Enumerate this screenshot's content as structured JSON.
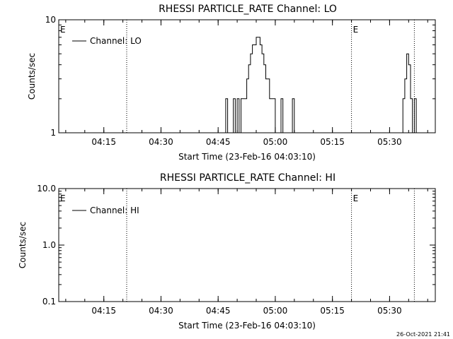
{
  "chart_data": [
    {
      "type": "line",
      "title": "RHESSI PARTICLE_RATE Channel: LO",
      "xlabel": "Start Time (23-Feb-16 04:03:10)",
      "ylabel": "Counts/sec",
      "y_scale": "log",
      "ylim": [
        1,
        10
      ],
      "xlim": [
        "04:03:10",
        "05:42:00"
      ],
      "x_ticks": [
        "04:15",
        "04:30",
        "04:45",
        "05:00",
        "05:15",
        "05:30"
      ],
      "y_ticks": [
        "1",
        "10"
      ],
      "legend": {
        "placement": "top-left",
        "entries": [
          "Channel: LO"
        ]
      },
      "event_markers": [
        {
          "label": "E",
          "time": "04:03:10",
          "line": false
        },
        {
          "label": "",
          "time": "04:21:00",
          "line": true
        },
        {
          "label": "E",
          "time": "05:20:00",
          "line": true
        },
        {
          "label": "",
          "time": "05:36:30",
          "line": true
        }
      ],
      "series": [
        {
          "x": [
            "04:46:30",
            "04:47:00",
            "04:47:30",
            "04:48:00",
            "04:48:30",
            "04:49:00",
            "04:49:30",
            "04:50:00",
            "04:50:30",
            "04:51:00",
            "04:51:30",
            "04:52:00",
            "04:52:30",
            "04:53:00",
            "04:53:30",
            "04:54:00",
            "04:54:30",
            "04:55:00",
            "04:55:30",
            "04:56:00",
            "04:56:30",
            "04:57:00",
            "04:57:30",
            "04:58:00",
            "04:58:30",
            "04:59:00",
            "04:59:30",
            "05:00:00",
            "05:01:00",
            "05:01:30",
            "05:02:00",
            "05:03:00",
            "05:04:00",
            "05:04:30",
            "05:05:00",
            "05:33:00",
            "05:33:30",
            "05:34:00",
            "05:34:30",
            "05:35:00",
            "05:35:30",
            "05:36:00",
            "05:36:30",
            "05:37:00"
          ],
          "values": [
            1,
            2,
            1,
            1,
            1,
            2,
            1,
            2,
            1,
            2,
            2,
            2,
            3,
            4,
            5,
            6,
            6,
            7,
            7,
            6,
            5,
            4,
            3,
            3,
            2,
            2,
            2,
            1,
            1,
            2,
            1,
            1,
            1,
            2,
            1,
            1,
            2,
            3,
            5,
            4,
            2,
            1,
            2,
            1
          ]
        }
      ]
    },
    {
      "type": "line",
      "title": "RHESSI PARTICLE_RATE Channel: HI",
      "xlabel": "Start Time (23-Feb-16 04:03:10)",
      "ylabel": "Counts/sec",
      "y_scale": "log",
      "ylim": [
        0.1,
        10
      ],
      "xlim": [
        "04:03:10",
        "05:42:00"
      ],
      "x_ticks": [
        "04:15",
        "04:30",
        "04:45",
        "05:00",
        "05:15",
        "05:30"
      ],
      "y_ticks": [
        "0.1",
        "1.0",
        "10.0"
      ],
      "legend": {
        "placement": "top-left",
        "entries": [
          "Channel: HI"
        ]
      },
      "event_markers": [
        {
          "label": "E",
          "time": "04:03:10",
          "line": false
        },
        {
          "label": "",
          "time": "04:21:00",
          "line": true
        },
        {
          "label": "E",
          "time": "05:20:00",
          "line": true
        },
        {
          "label": "",
          "time": "05:36:30",
          "line": true
        }
      ],
      "series": [
        {
          "x": [],
          "values": []
        }
      ]
    }
  ],
  "footer": {
    "timestamp": "26-Oct-2021 21:41"
  }
}
